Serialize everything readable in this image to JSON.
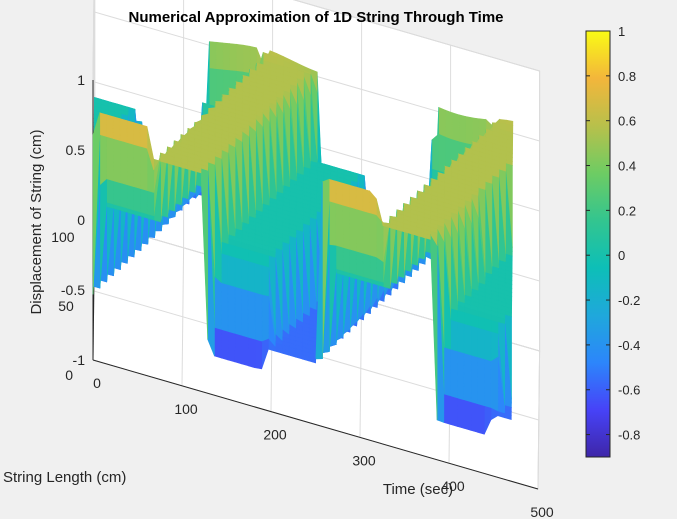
{
  "chart_data": {
    "type": "surface",
    "title": "Numerical Approximation of 1D String Through Time",
    "xlabel": "Time (sec)",
    "ylabel": "String Length (cm)",
    "zlabel": "Displacement of String (cm)",
    "xlim": [
      0,
      500
    ],
    "ylim": [
      0,
      100
    ],
    "zlim": [
      -1,
      1
    ],
    "xticks": [
      "0",
      "100",
      "200",
      "300",
      "400",
      "500"
    ],
    "yticks": [
      "0",
      "50",
      "100"
    ],
    "zticks": [
      "-1",
      "-0.5",
      "0",
      "0.5",
      "1"
    ],
    "grid": true,
    "colormap": "parula",
    "colorbar": {
      "range": [
        -0.9,
        1
      ],
      "ticks": [
        "1",
        "0.8",
        "0.6",
        "0.4",
        "0.2",
        "0",
        "-0.2",
        "-0.4",
        "-0.6",
        "-0.8"
      ],
      "tick_values": [
        1,
        0.8,
        0.6,
        0.4,
        0.2,
        0,
        -0.2,
        -0.4,
        -0.6,
        -0.8
      ],
      "colors": [
        "#3e26a8",
        "#4743f8",
        "#2c86fb",
        "#1fa8db",
        "#0dbfb7",
        "#33c58f",
        "#6ecc63",
        "#b8c04b",
        "#f3b63b",
        "#f9fb15"
      ]
    },
    "surface": {
      "description_hidden": true,
      "peak_max": 0.85,
      "trough_min": -0.85
    }
  }
}
